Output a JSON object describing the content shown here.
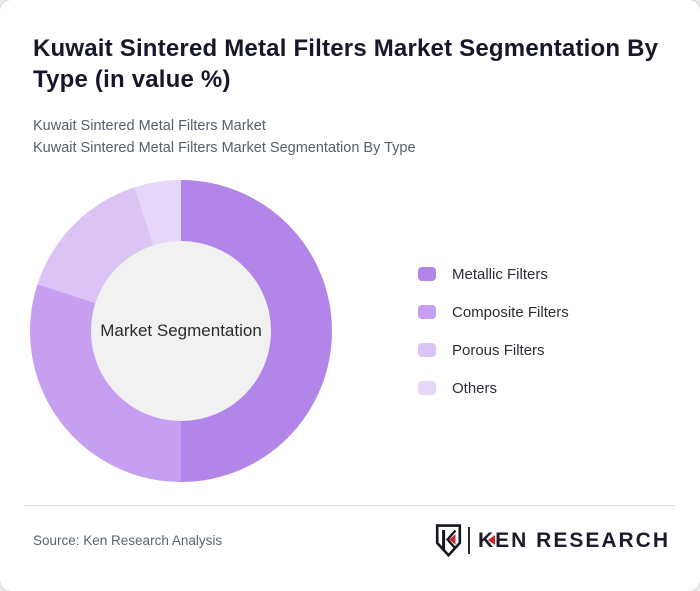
{
  "header": {
    "title": "Kuwait Sintered Metal Filters Market Segmentation By Type (in value %)",
    "subtitle_line1": "Kuwait Sintered Metal Filters Market",
    "subtitle_line2": "Kuwait Sintered Metal Filters Market Segmentation By Type"
  },
  "chart_data": {
    "type": "pie",
    "subtype": "donut",
    "title": "Kuwait Sintered Metal Filters Market Segmentation By Type (in value %)",
    "unit": "value %",
    "center_label": "Market Segmentation",
    "start_angle_deg": 0,
    "direction": "clockwise",
    "legend_position": "right",
    "inner_circle_color": "#f1f1f2",
    "series": [
      {
        "name": "Metallic Filters",
        "value": 50,
        "color": "#b286e8"
      },
      {
        "name": "Composite Filters",
        "value": 30,
        "color": "#c69ff0"
      },
      {
        "name": "Porous Filters",
        "value": 15,
        "color": "#dcc3f5"
      },
      {
        "name": "Others",
        "value": 5,
        "color": "#e6d6f8"
      }
    ]
  },
  "footer": {
    "source": "Source: Ken Research Analysis",
    "logo": {
      "wordmark_k": "K",
      "wordmark_rest": "EN RESEARCH",
      "accent_color": "#c9252c",
      "dark_color": "#1b1b2b"
    }
  }
}
